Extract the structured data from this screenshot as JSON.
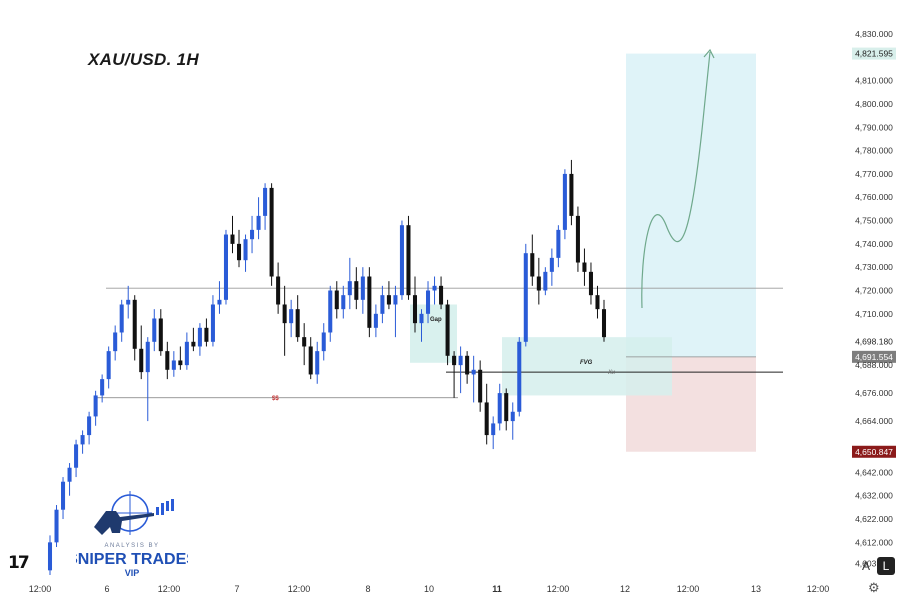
{
  "title": "XAU/USD.  1H",
  "watermark": {
    "line1": "ANALYSIS BY",
    "line2": "SNIPER TRADES",
    "line3": "VIP"
  },
  "tv_logo": "17",
  "buttons": {
    "auto_label": "A",
    "log_label": "L"
  },
  "annotations": {
    "gap_label": "Gap",
    "fvg_label": "FVG",
    "ss_label": "$$",
    "xx_label": "Xx"
  },
  "colors": {
    "bull": "#2a5bd7",
    "bear": "#111111",
    "target_zone": "#dff3f8",
    "stop_zone": "#f3e0e0",
    "fvg_zone": "#d5efec",
    "price_tag_green": "#d8efeb",
    "price_tag_red": "#8b1a1a"
  },
  "chart_data": {
    "type": "candlestick",
    "symbol": "XAU/USD",
    "timeframe": "1H",
    "y_axis": {
      "ticks": [
        "4,830.000",
        "4,821.595",
        "4,810.000",
        "4,800.000",
        "4,790.000",
        "4,780.000",
        "4,770.000",
        "4,760.000",
        "4,750.000",
        "4,740.000",
        "4,730.000",
        "4,720.000",
        "4,710.000",
        "4,698.180",
        "4,691.554",
        "4,688.000",
        "4,676.000",
        "4,664.000",
        "4,650.847",
        "4,642.000",
        "4,632.000",
        "4,622.000",
        "4,612.000",
        "4,603.000"
      ],
      "range": [
        4598,
        4836
      ]
    },
    "x_axis": {
      "ticks": [
        "12:00",
        "6",
        "12:00",
        "7",
        "12:00",
        "8",
        "10",
        "11",
        "12:00",
        "12",
        "12:00",
        "13",
        "12:00"
      ]
    },
    "price_tags": {
      "target": 4821.595,
      "hidden_level": 4698.18,
      "entry": 4691.554,
      "stop": 4650.847
    },
    "levels": {
      "resistance": 4721,
      "support_ss": 4674,
      "fvg_mid": 4685
    },
    "zones": {
      "target_zone": [
        4691.554,
        4821.595
      ],
      "stop_zone": [
        4650.847,
        4691.554
      ],
      "gap_zone": [
        4689,
        4714
      ],
      "fvg_zone": [
        4675,
        4700
      ]
    },
    "candles": [
      [
        4600,
        4615,
        4598,
        4612
      ],
      [
        4612,
        4628,
        4610,
        4626
      ],
      [
        4626,
        4640,
        4622,
        4638
      ],
      [
        4638,
        4646,
        4632,
        4644
      ],
      [
        4644,
        4656,
        4640,
        4654
      ],
      [
        4654,
        4660,
        4650,
        4658
      ],
      [
        4658,
        4668,
        4654,
        4666
      ],
      [
        4666,
        4677,
        4662,
        4675
      ],
      [
        4675,
        4684,
        4672,
        4682
      ],
      [
        4682,
        4696,
        4678,
        4694
      ],
      [
        4694,
        4705,
        4690,
        4702
      ],
      [
        4702,
        4716,
        4698,
        4714
      ],
      [
        4714,
        4722,
        4708,
        4716
      ],
      [
        4716,
        4718,
        4690,
        4695
      ],
      [
        4695,
        4705,
        4682,
        4685
      ],
      [
        4685,
        4700,
        4664,
        4698
      ],
      [
        4698,
        4712,
        4694,
        4708
      ],
      [
        4708,
        4712,
        4692,
        4694
      ],
      [
        4694,
        4698,
        4682,
        4686
      ],
      [
        4686,
        4694,
        4683,
        4690
      ],
      [
        4690,
        4696,
        4686,
        4688
      ],
      [
        4688,
        4702,
        4686,
        4698
      ],
      [
        4698,
        4704,
        4694,
        4696
      ],
      [
        4696,
        4706,
        4692,
        4704
      ],
      [
        4704,
        4708,
        4696,
        4698
      ],
      [
        4698,
        4718,
        4696,
        4714
      ],
      [
        4714,
        4724,
        4710,
        4716
      ],
      [
        4716,
        4746,
        4714,
        4744
      ],
      [
        4744,
        4752,
        4736,
        4740
      ],
      [
        4740,
        4746,
        4730,
        4733
      ],
      [
        4733,
        4744,
        4728,
        4742
      ],
      [
        4742,
        4752,
        4736,
        4746
      ],
      [
        4746,
        4760,
        4742,
        4752
      ],
      [
        4752,
        4766,
        4746,
        4764
      ],
      [
        4764,
        4766,
        4722,
        4726
      ],
      [
        4726,
        4732,
        4710,
        4714
      ],
      [
        4714,
        4722,
        4692,
        4706
      ],
      [
        4706,
        4716,
        4700,
        4712
      ],
      [
        4712,
        4718,
        4698,
        4700
      ],
      [
        4700,
        4706,
        4688,
        4696
      ],
      [
        4696,
        4700,
        4682,
        4684
      ],
      [
        4684,
        4698,
        4680,
        4694
      ],
      [
        4694,
        4706,
        4690,
        4702
      ],
      [
        4702,
        4722,
        4698,
        4720
      ],
      [
        4720,
        4724,
        4708,
        4712
      ],
      [
        4712,
        4722,
        4708,
        4718
      ],
      [
        4718,
        4734,
        4712,
        4724
      ],
      [
        4724,
        4730,
        4712,
        4716
      ],
      [
        4716,
        4730,
        4710,
        4726
      ],
      [
        4726,
        4730,
        4700,
        4704
      ],
      [
        4704,
        4714,
        4700,
        4710
      ],
      [
        4710,
        4722,
        4706,
        4718
      ],
      [
        4718,
        4724,
        4712,
        4714
      ],
      [
        4714,
        4722,
        4700,
        4718
      ],
      [
        4718,
        4750,
        4716,
        4748
      ],
      [
        4748,
        4752,
        4716,
        4718
      ],
      [
        4718,
        4726,
        4702,
        4706
      ],
      [
        4706,
        4712,
        4698,
        4710
      ],
      [
        4710,
        4724,
        4706,
        4720
      ],
      [
        4720,
        4726,
        4714,
        4722
      ],
      [
        4722,
        4726,
        4712,
        4714
      ],
      [
        4714,
        4716,
        4688,
        4692
      ],
      [
        4692,
        4694,
        4674,
        4688
      ],
      [
        4688,
        4696,
        4676,
        4692
      ],
      [
        4692,
        4694,
        4680,
        4684
      ],
      [
        4684,
        4692,
        4672,
        4686
      ],
      [
        4686,
        4690,
        4668,
        4672
      ],
      [
        4672,
        4680,
        4654,
        4658
      ],
      [
        4658,
        4666,
        4652,
        4663
      ],
      [
        4663,
        4680,
        4660,
        4676
      ],
      [
        4676,
        4678,
        4660,
        4664
      ],
      [
        4664,
        4672,
        4656,
        4668
      ],
      [
        4668,
        4700,
        4666,
        4698
      ],
      [
        4698,
        4740,
        4696,
        4736
      ],
      [
        4736,
        4744,
        4722,
        4726
      ],
      [
        4726,
        4734,
        4714,
        4720
      ],
      [
        4720,
        4730,
        4718,
        4728
      ],
      [
        4728,
        4738,
        4722,
        4734
      ],
      [
        4734,
        4748,
        4730,
        4746
      ],
      [
        4746,
        4772,
        4742,
        4770
      ],
      [
        4770,
        4776,
        4748,
        4752
      ],
      [
        4752,
        4756,
        4728,
        4732
      ],
      [
        4732,
        4738,
        4722,
        4728
      ],
      [
        4728,
        4732,
        4714,
        4718
      ],
      [
        4718,
        4722,
        4708,
        4712
      ],
      [
        4712,
        4716,
        4698,
        4700
      ]
    ]
  }
}
